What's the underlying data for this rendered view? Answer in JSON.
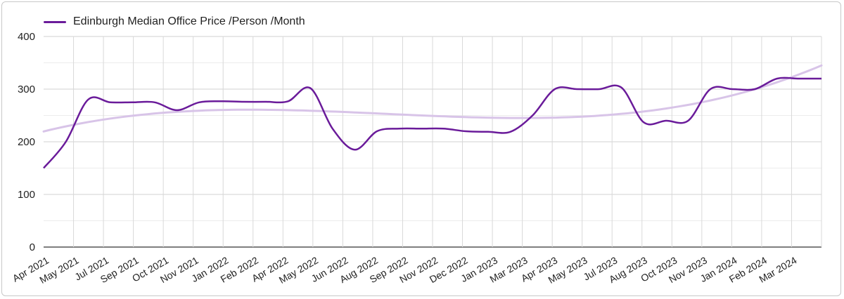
{
  "chart_data": {
    "type": "line",
    "legend": {
      "position": "top-left",
      "entries": [
        "Edinburgh Median Office Price /Person /Month"
      ]
    },
    "series": [
      {
        "name": "Edinburgh Median Office Price /Person /Month",
        "color": "#6a1b9a",
        "values": [
          150,
          200,
          280,
          275,
          275,
          275,
          260,
          275,
          277,
          276,
          276,
          277,
          302,
          225,
          185,
          220,
          225,
          225,
          225,
          220,
          219,
          219,
          250,
          300,
          300,
          300,
          303,
          237,
          240,
          240,
          300,
          300,
          300,
          320,
          320,
          320
        ]
      }
    ],
    "trendline": {
      "color": "#d8c4e8",
      "type": "polynomial"
    },
    "x_tick_labels": [
      "Apr 2021",
      "May 2021",
      "Jul 2021",
      "Sep 2021",
      "Oct 2021",
      "Nov 2021",
      "Jan 2022",
      "Feb 2022",
      "Apr 2022",
      "May 2022",
      "Jun 2022",
      "Aug 2022",
      "Sep 2022",
      "Nov 2022",
      "Dec 2022",
      "Jan 2023",
      "Mar 2023",
      "Apr 2023",
      "May 2023",
      "Jul 2023",
      "Aug 2023",
      "Oct 2023",
      "Nov 2023",
      "Jan 2024",
      "Feb 2024",
      "Mar 2024"
    ],
    "y_ticks": [
      0,
      100,
      200,
      300,
      400
    ],
    "ylim": [
      0,
      400
    ],
    "grid": true
  }
}
